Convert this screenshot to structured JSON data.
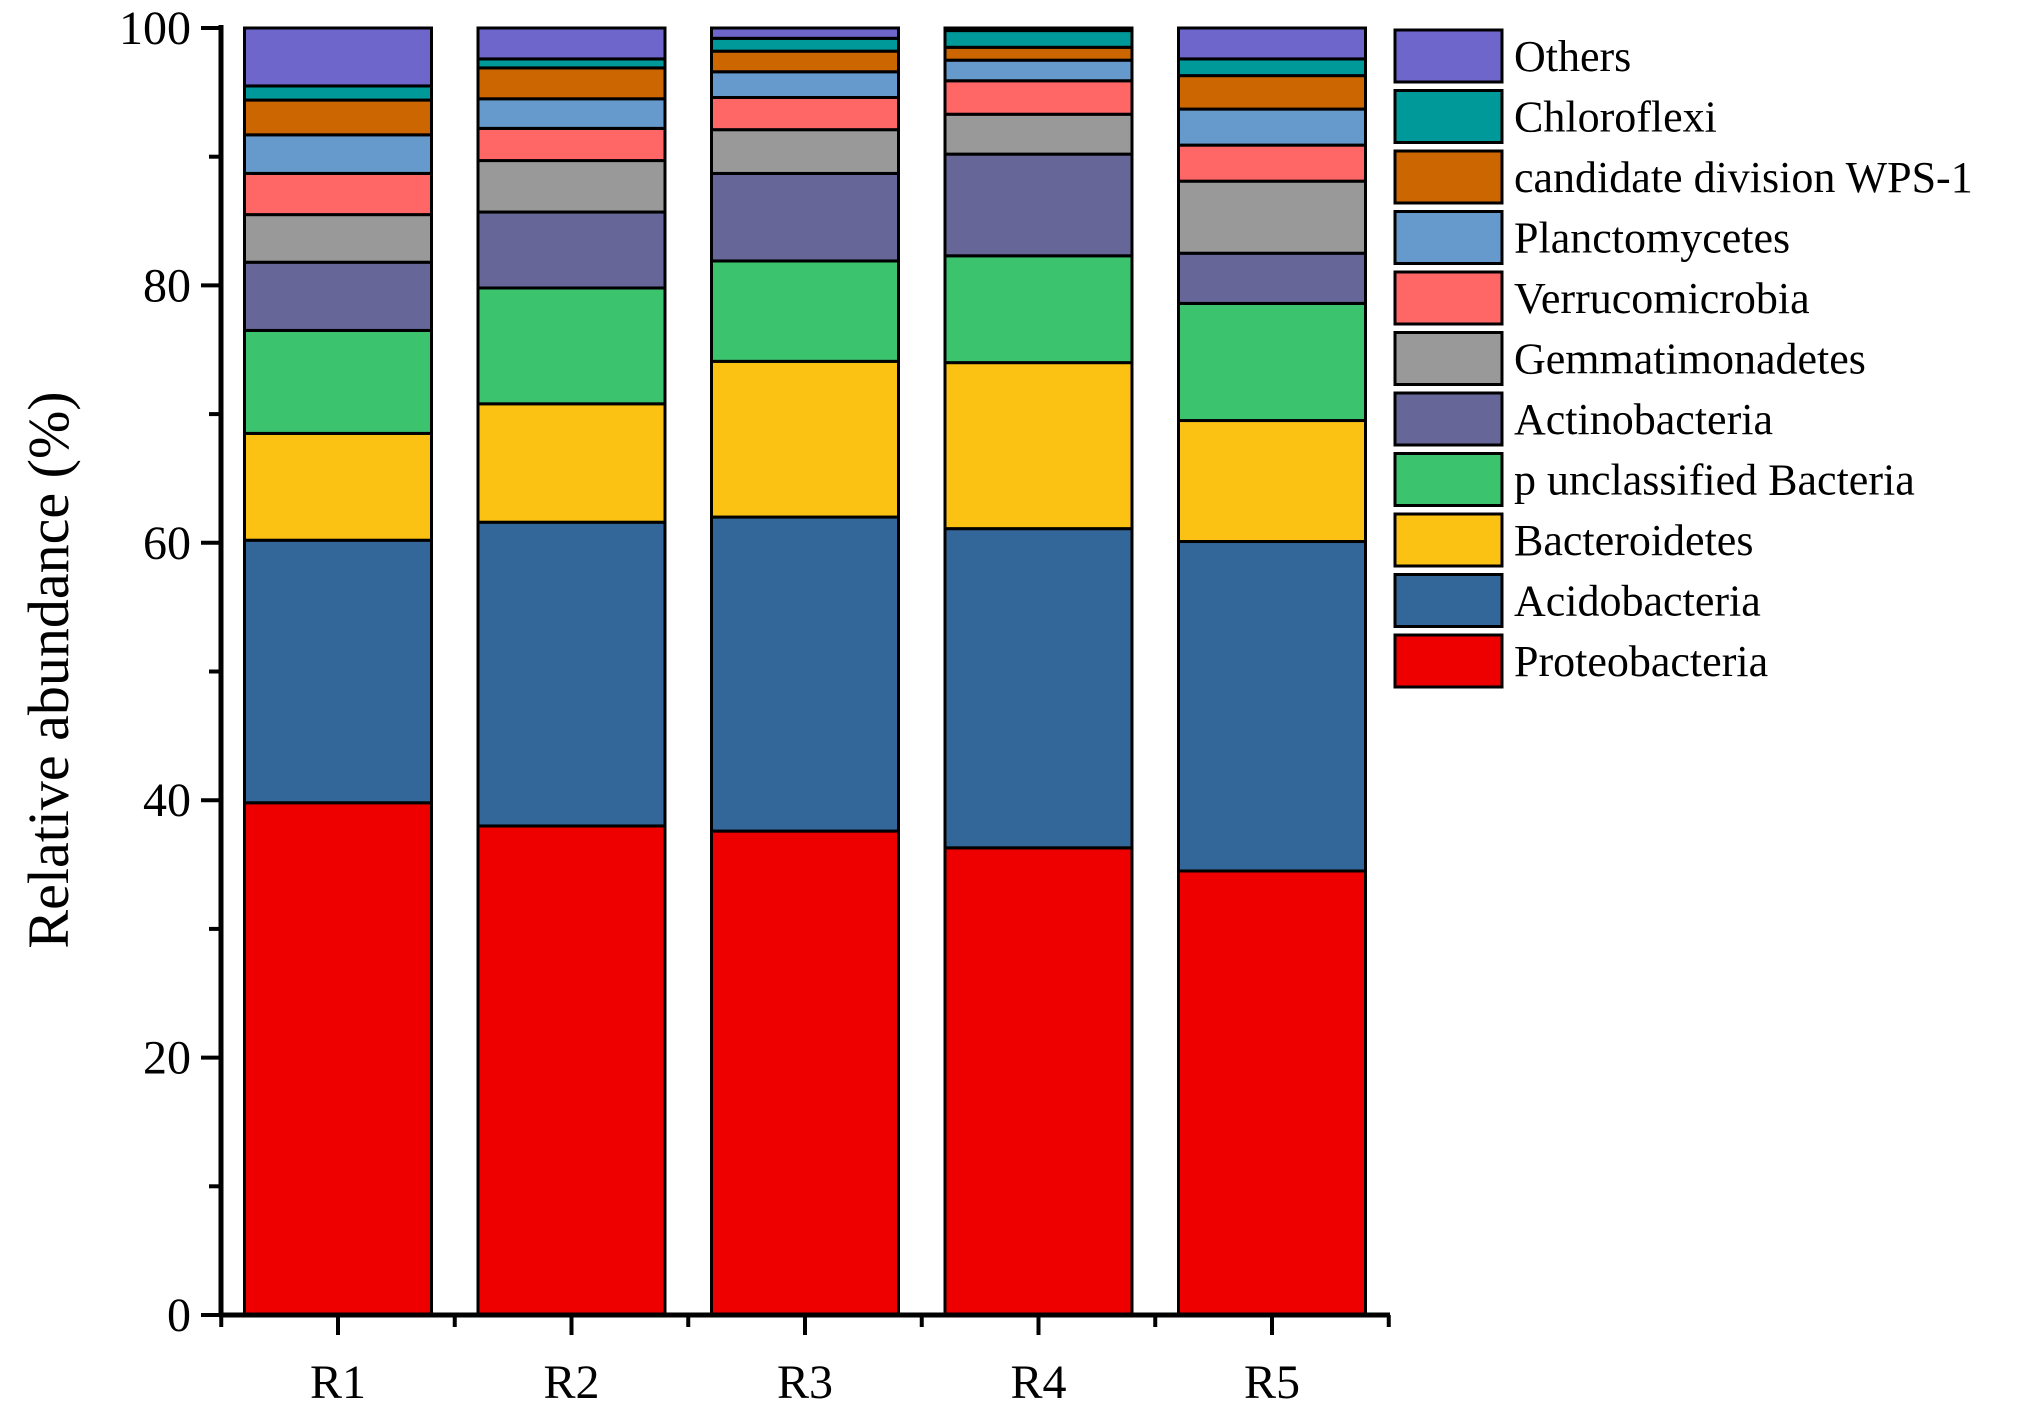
{
  "chart_data": {
    "type": "bar",
    "stacked": true,
    "title": "",
    "xlabel": "",
    "ylabel": "Relative abundance (%)",
    "ylim": [
      0,
      100
    ],
    "yticks": [
      "0",
      "20",
      "40",
      "60",
      "80",
      "100"
    ],
    "grid": false,
    "legend_position": "right",
    "categories": [
      "R1",
      "R2",
      "R3",
      "R4",
      "R5"
    ],
    "series": [
      {
        "name": "Proteobacteria",
        "color": "#EE0000",
        "values": [
          39.8,
          38.0,
          37.6,
          36.3,
          34.5
        ]
      },
      {
        "name": "Acidobacteria",
        "color": "#336699",
        "values": [
          20.4,
          23.6,
          24.4,
          24.8,
          25.6
        ]
      },
      {
        "name": "Bacteroidetes",
        "color": "#FCC213",
        "values": [
          8.3,
          9.2,
          12.1,
          12.9,
          9.4
        ]
      },
      {
        "name": "p unclassified Bacteria",
        "color": "#3CC36E",
        "values": [
          8.0,
          9.0,
          7.8,
          8.3,
          9.1
        ]
      },
      {
        "name": "Actinobacteria",
        "color": "#666699",
        "values": [
          5.3,
          5.9,
          6.8,
          7.9,
          3.9
        ]
      },
      {
        "name": "Gemmatimonadetes",
        "color": "#999999",
        "values": [
          3.7,
          4.0,
          3.4,
          3.1,
          5.6
        ]
      },
      {
        "name": "Verrucomicrobia",
        "color": "#FF6666",
        "values": [
          3.2,
          2.5,
          2.5,
          2.6,
          2.8
        ]
      },
      {
        "name": "Planctomycetes",
        "color": "#6699CC",
        "values": [
          3.0,
          2.3,
          2.0,
          1.6,
          2.8
        ]
      },
      {
        "name": "candidate division WPS-1",
        "color": "#CC6600",
        "values": [
          2.7,
          2.4,
          1.6,
          1.0,
          2.6
        ]
      },
      {
        "name": "Chloroflexi",
        "color": "#009999",
        "values": [
          1.1,
          0.7,
          1.0,
          1.3,
          1.3
        ]
      },
      {
        "name": "Others",
        "color": "#6F66CC",
        "values": [
          4.5,
          2.4,
          0.8,
          0.2,
          2.4
        ]
      }
    ]
  }
}
